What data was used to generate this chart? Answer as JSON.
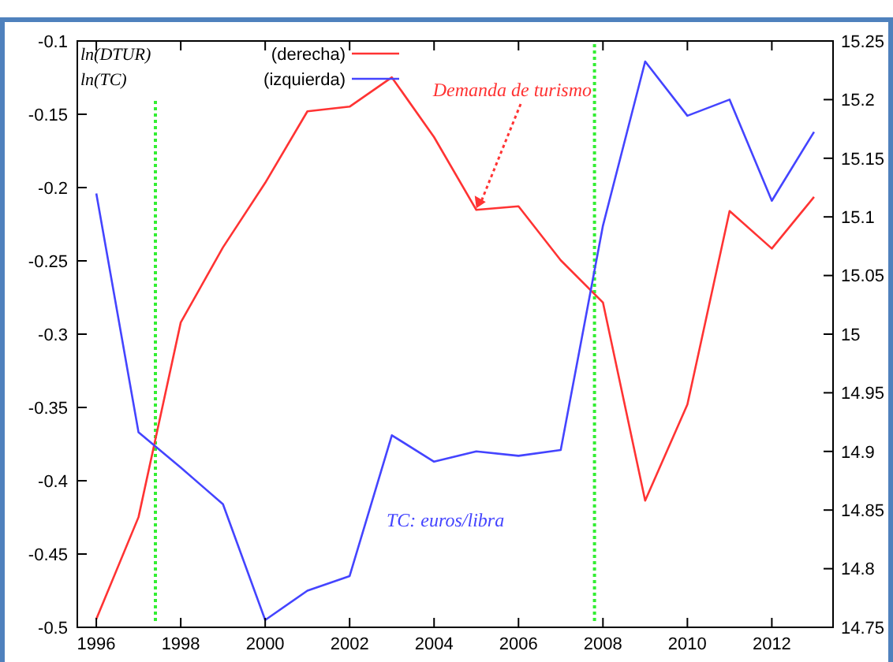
{
  "chart_data": {
    "type": "line",
    "x": [
      1996,
      1997,
      1998,
      1999,
      2000,
      2001,
      2002,
      2003,
      2004,
      2005,
      2006,
      2007,
      2008,
      2009,
      2010,
      2011,
      2012,
      2013
    ],
    "series": [
      {
        "name": "(derecha)",
        "color": "#ff3333",
        "axis": "y2",
        "values": [
          14.757,
          14.844,
          15.01,
          15.074,
          15.129,
          15.19,
          15.194,
          15.219,
          15.168,
          15.106,
          15.109,
          15.063,
          15.027,
          14.858,
          14.94,
          15.105,
          15.073,
          15.117
        ]
      },
      {
        "name": "(izquierda)",
        "color": "#4444ff",
        "values": [
          -0.204,
          -0.367,
          -0.391,
          -0.416,
          -0.495,
          -0.475,
          -0.465,
          -0.369,
          -0.387,
          -0.38,
          -0.383,
          -0.379,
          -0.226,
          -0.114,
          -0.151,
          -0.14,
          -0.209,
          -0.162
        ]
      }
    ],
    "xlim": [
      1995.55,
      2013.45
    ],
    "xticks": [
      1996,
      1998,
      2000,
      2002,
      2004,
      2006,
      2008,
      2010,
      2012
    ],
    "ylim": [
      -0.5,
      -0.1
    ],
    "yticks": [
      -0.5,
      -0.45,
      -0.4,
      -0.35,
      -0.3,
      -0.25,
      -0.2,
      -0.15,
      -0.1
    ],
    "y2lim": [
      14.75,
      15.25
    ],
    "y2ticks": [
      14.75,
      14.8,
      14.85,
      14.9,
      14.95,
      15,
      15.05,
      15.1,
      15.15,
      15.2,
      15.25
    ],
    "ref_lines": [
      {
        "axis": "x",
        "value": 1997.4,
        "color": "#33ee33",
        "line_style": "dotted"
      },
      {
        "axis": "x",
        "value": 2007.8,
        "color": "#33ee33",
        "line_style": "dotted"
      }
    ],
    "annotations": [
      "ln(DTUR)",
      "ln(TC)",
      "Demanda de turismo",
      "TC: euros/libra"
    ],
    "legend": "top left",
    "grid": false,
    "marker": "none",
    "line_style": "solid"
  }
}
